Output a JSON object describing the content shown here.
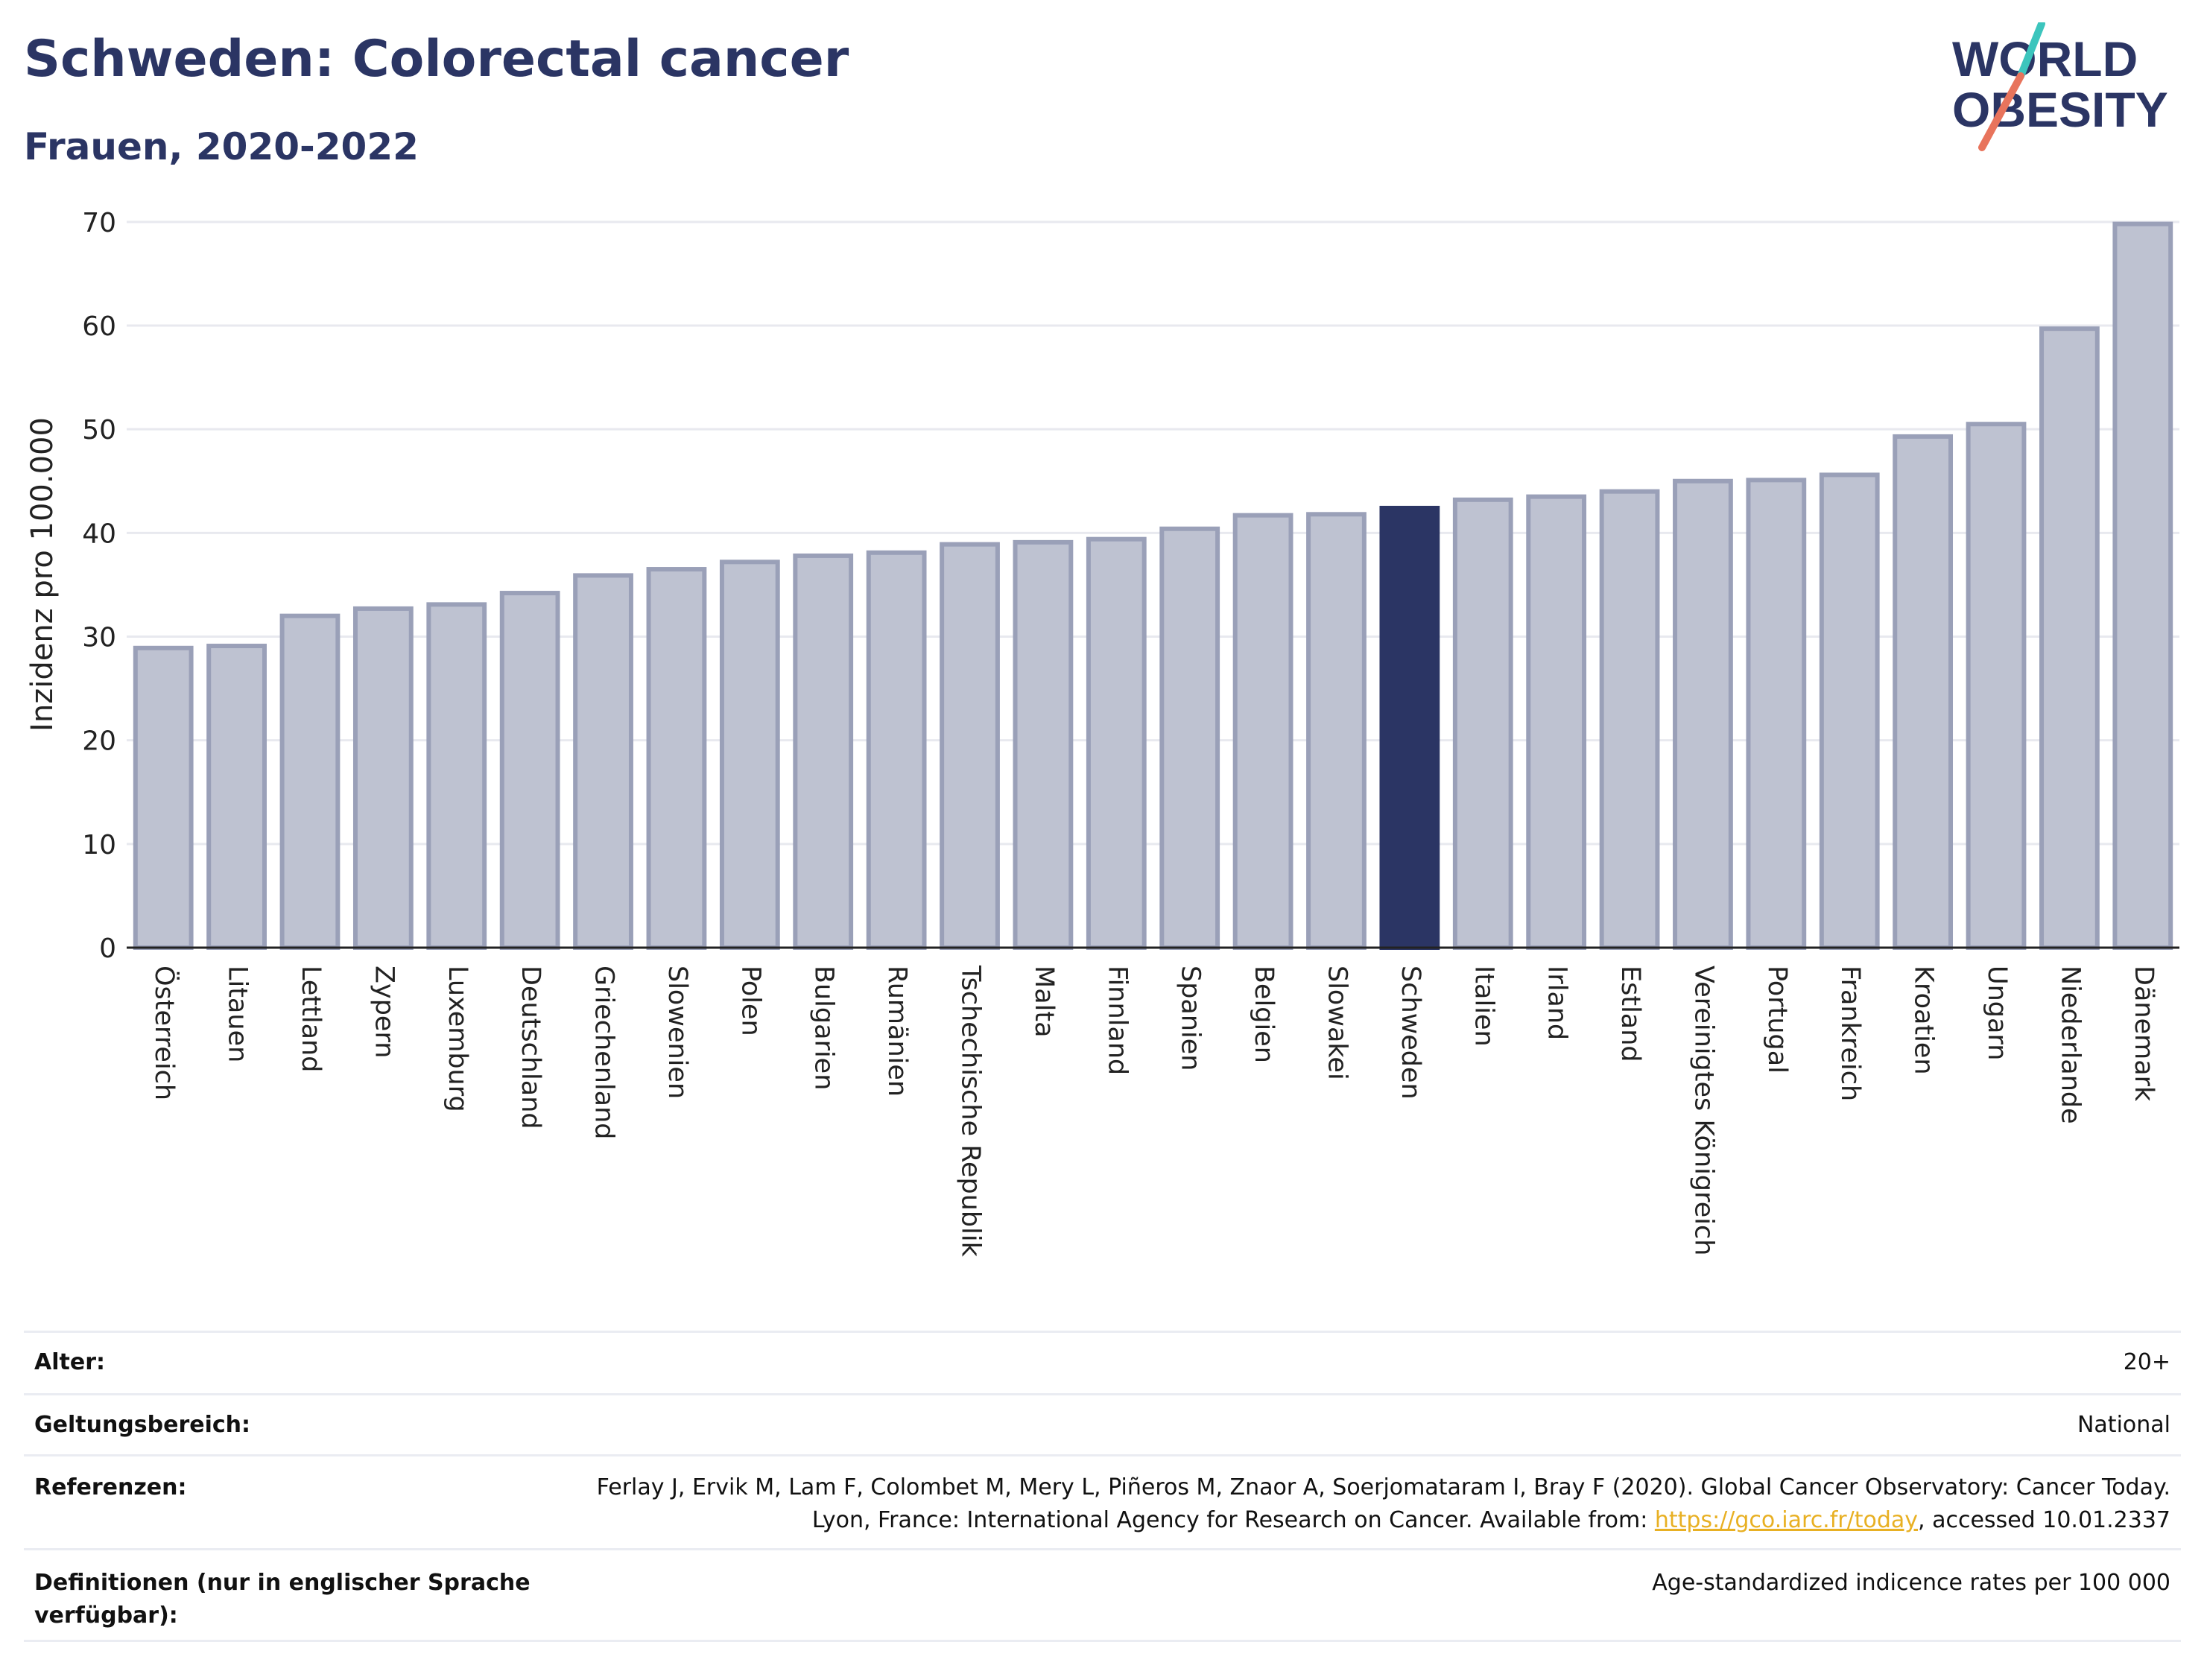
{
  "header": {
    "title": "Schweden: Colorectal cancer",
    "subtitle": "Frauen, 2020-2022"
  },
  "logo": {
    "line1": "WORLD",
    "line2": "OBESITY",
    "colors": [
      "#2b3564",
      "#3cc5bd",
      "#e8745c"
    ]
  },
  "colors": {
    "bar": "#bec2d1",
    "bar_stroke": "#9aa0b8",
    "highlight": "#2b3564",
    "grid": "#e8e9ef",
    "axis": "#222222"
  },
  "chart_data": {
    "type": "bar",
    "title": "Schweden: Colorectal cancer",
    "subtitle": "Frauen, 2020-2022",
    "ylabel": "Inzidenz pro 100.000",
    "xlabel": "",
    "ylim": [
      0,
      72
    ],
    "yticks": [
      0,
      10,
      20,
      30,
      40,
      50,
      60,
      70
    ],
    "grid": true,
    "highlight": "Schweden",
    "categories": [
      "Österreich",
      "Litauen",
      "Lettland",
      "Zypern",
      "Luxemburg",
      "Deutschland",
      "Griechenland",
      "Slowenien",
      "Polen",
      "Bulgarien",
      "Rumänien",
      "Tschechische Republik",
      "Malta",
      "Finnland",
      "Spanien",
      "Belgien",
      "Slowakei",
      "Schweden",
      "Italien",
      "Irland",
      "Estland",
      "Vereinigtes Königreich",
      "Portugal",
      "Frankreich",
      "Kroatien",
      "Ungarn",
      "Niederlande",
      "Dänemark"
    ],
    "values": [
      28.9,
      29.1,
      32.0,
      32.7,
      33.1,
      34.2,
      35.9,
      36.5,
      37.2,
      37.8,
      38.1,
      38.9,
      39.1,
      39.4,
      40.4,
      41.7,
      41.8,
      42.4,
      43.2,
      43.5,
      44.0,
      45.0,
      45.1,
      45.6,
      49.3,
      50.5,
      59.7,
      69.8
    ]
  },
  "meta": {
    "rows": [
      {
        "key": "Alter:",
        "value": "20+"
      },
      {
        "key": "Geltungsbereich:",
        "value": "National"
      },
      {
        "key": "Referenzen:",
        "value_pre": "Ferlay J, Ervik M, Lam F, Colombet M, Mery L, Piñeros M, Znaor A, Soerjomataram I, Bray F (2020). Global Cancer Observatory: Cancer Today. Lyon, France: International Agency for Research on Cancer. Available from: ",
        "link": "https://gco.iarc.fr/today",
        "value_post": ", accessed 10.01.2337"
      },
      {
        "key": "Definitionen (nur in englischer Sprache verfügbar):",
        "value": "Age-standardized indicence rates per 100 000"
      }
    ]
  }
}
